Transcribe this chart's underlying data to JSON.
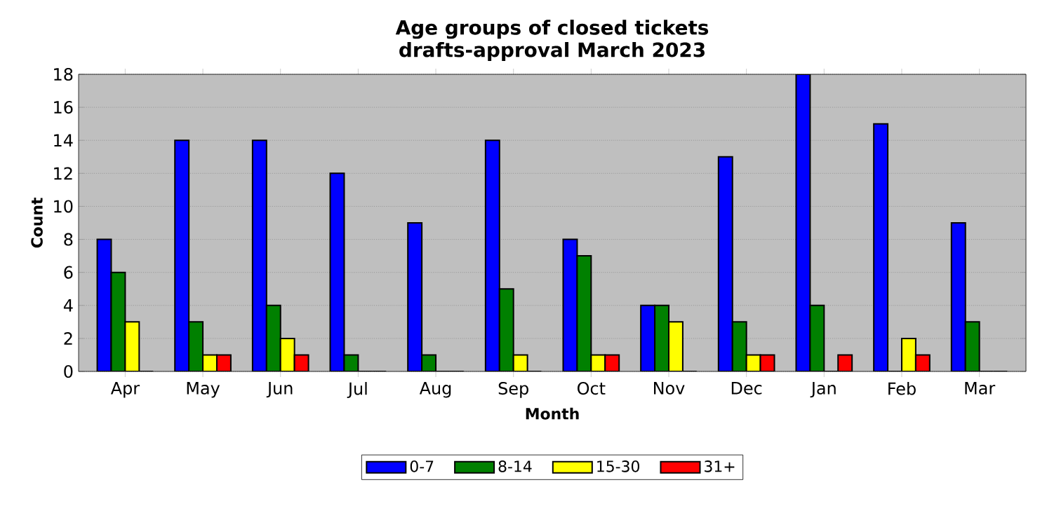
{
  "chart_data": {
    "type": "bar",
    "title": "Age groups of closed tickets\ndrafts-approval March 2023",
    "xlabel": "Month",
    "ylabel": "Count",
    "categories": [
      "Apr",
      "May",
      "Jun",
      "Jul",
      "Aug",
      "Sep",
      "Oct",
      "Nov",
      "Dec",
      "Jan",
      "Feb",
      "Mar"
    ],
    "series": [
      {
        "name": "0-7",
        "color": "#0000ff",
        "values": [
          8,
          14,
          14,
          12,
          9,
          14,
          8,
          4,
          13,
          18,
          15,
          9
        ]
      },
      {
        "name": "8-14",
        "color": "#008000",
        "values": [
          6,
          3,
          4,
          1,
          1,
          5,
          7,
          4,
          3,
          4,
          0,
          3
        ]
      },
      {
        "name": "15-30",
        "color": "#ffff00",
        "values": [
          3,
          1,
          2,
          0,
          0,
          1,
          1,
          3,
          1,
          0,
          2,
          0
        ]
      },
      {
        "name": "31+",
        "color": "#ff0000",
        "values": [
          0,
          1,
          1,
          0,
          0,
          0,
          1,
          0,
          1,
          1,
          1,
          0
        ]
      }
    ],
    "ylim": [
      0,
      18
    ],
    "yticks": [
      0,
      2,
      4,
      6,
      8,
      10,
      12,
      14,
      16,
      18
    ],
    "grid": "y",
    "legend": "bottom"
  }
}
